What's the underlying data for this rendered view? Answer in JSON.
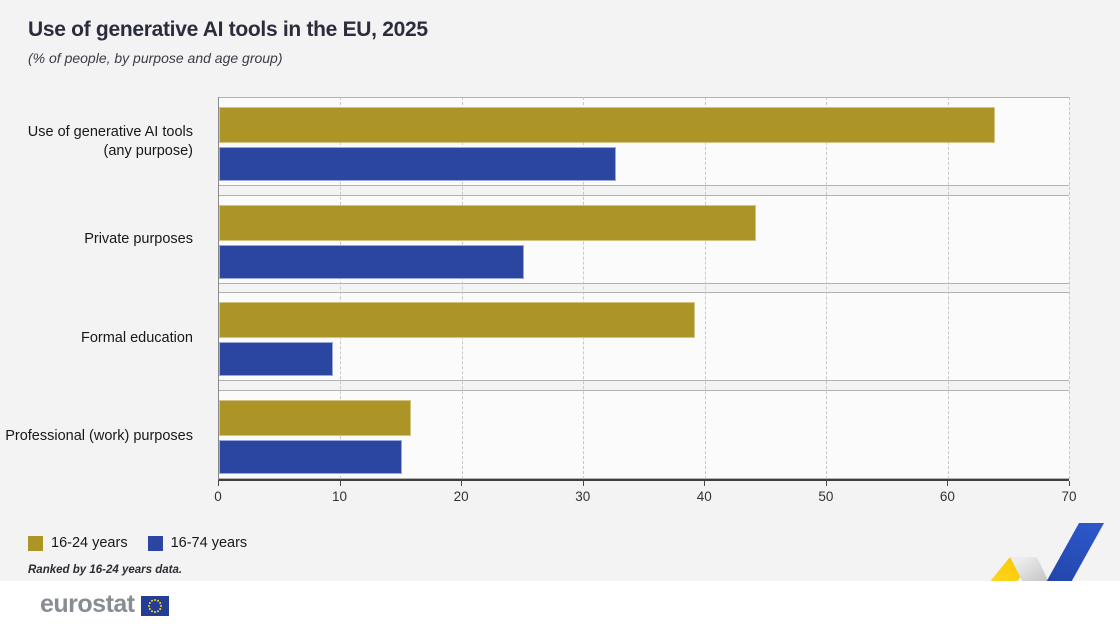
{
  "title": "Use of generative AI tools in the EU, 2025",
  "subtitle": "(% of people, by purpose and age group)",
  "footnote": "Ranked by 16-24 years data.",
  "branding": {
    "logo_text": "eurostat",
    "flag_icon": "eu-flag"
  },
  "colors": {
    "young": "#ac9426",
    "all": "#2b46a0",
    "background": "#f3f3f3",
    "eu_flag_blue": "#243e94",
    "eu_star_yellow": "#ffd617"
  },
  "legend": {
    "items": [
      {
        "label": "16-24 years",
        "color": "#ac9426"
      },
      {
        "label": "16-74 years",
        "color": "#2b46a0"
      }
    ]
  },
  "chart_data": {
    "type": "bar",
    "orientation": "horizontal",
    "title": "Use of generative AI tools in the EU, 2025",
    "subtitle": "(% of people, by purpose and age group)",
    "categories": [
      "Use of generative AI tools (any purpose)",
      "Private purposes",
      "Formal education",
      "Professional (work) purposes"
    ],
    "series": [
      {
        "name": "16-24 years",
        "color": "#ac9426",
        "values": [
          63.9,
          44.2,
          39.2,
          15.8
        ]
      },
      {
        "name": "16-74 years",
        "color": "#2b46a0",
        "values": [
          32.7,
          25.1,
          9.4,
          15.1
        ]
      }
    ],
    "xlim": [
      0,
      70
    ],
    "x_ticks": [
      0,
      10,
      20,
      30,
      40,
      50,
      60,
      70
    ],
    "xlabel": "",
    "ylabel": "",
    "grid": "dashed-vertical",
    "legend_position": "bottom-left",
    "annotation": "Ranked by 16-24 years data."
  }
}
